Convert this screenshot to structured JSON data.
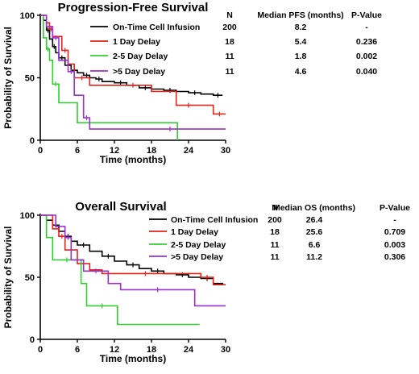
{
  "chart_data": [
    {
      "type": "line",
      "title": "Progression-Free Survival",
      "xlabel": "Time (months)",
      "ylabel": "Probability of Survival",
      "xlim": [
        0,
        30
      ],
      "ylim": [
        0,
        100
      ],
      "xticks": [
        "0",
        "6",
        "12",
        "18",
        "24",
        "30"
      ],
      "yticks": [
        "0",
        "50",
        "100"
      ],
      "legend": "top-right",
      "table_headers": [
        "N",
        "Median PFS (months)",
        "P-Value"
      ],
      "series": [
        {
          "name": "On-Time Cell Infusion",
          "color": "#000000",
          "N": "200",
          "median": "8.2",
          "p_value": "-",
          "x": [
            0,
            0.5,
            1,
            1.5,
            2,
            2.5,
            3,
            4,
            5,
            6,
            7,
            8,
            9,
            10,
            12,
            14,
            16,
            18,
            20,
            22,
            24,
            26,
            28,
            29.5
          ],
          "y": [
            100,
            96,
            88,
            81,
            75,
            70,
            66,
            60,
            56,
            54,
            52,
            50,
            49,
            47,
            46,
            44,
            42,
            41,
            40,
            39,
            38,
            37,
            36,
            36
          ]
        },
        {
          "name": "1 Day Delay",
          "color": "#e32219",
          "N": "18",
          "median": "5.4",
          "p_value": "0.236",
          "x": [
            0,
            1,
            1.5,
            2,
            3.5,
            4.5,
            5.5,
            8,
            12,
            18,
            22,
            26,
            28,
            30
          ],
          "y": [
            100,
            94,
            89,
            83,
            72,
            61,
            50,
            44,
            44,
            39,
            28,
            28,
            21,
            21
          ]
        },
        {
          "name": "2-5 Day Delay",
          "color": "#33cc33",
          "N": "11",
          "median": "1.8",
          "p_value": "0.002",
          "x": [
            0,
            0.5,
            1,
            1.5,
            2,
            3,
            6,
            10,
            22.2
          ],
          "y": [
            100,
            82,
            73,
            64,
            45,
            30,
            14,
            14,
            0
          ]
        },
        {
          "name": ">5 Day Delay",
          "color": "#9b30d0",
          "N": "11",
          "median": "4.6",
          "p_value": "0.040",
          "x": [
            0,
            1,
            2,
            3,
            4.5,
            5.5,
            7,
            8,
            12,
            30
          ],
          "y": [
            100,
            91,
            82,
            64,
            55,
            36,
            18,
            9,
            9,
            9
          ]
        }
      ]
    },
    {
      "type": "line",
      "title": "Overall Survival",
      "xlabel": "Time (months)",
      "ylabel": "Probability of Survival",
      "xlim": [
        0,
        30
      ],
      "ylim": [
        0,
        100
      ],
      "xticks": [
        "0",
        "6",
        "12",
        "18",
        "24",
        "30"
      ],
      "yticks": [
        "0",
        "50",
        "100"
      ],
      "legend": "top-right",
      "table_headers": [
        "N",
        "Median OS (months)",
        "P-Value"
      ],
      "series": [
        {
          "name": "On-Time Cell Infusion",
          "color": "#000000",
          "N": "200",
          "median": "26.4",
          "p_value": "-",
          "x": [
            0,
            1,
            2,
            3,
            4,
            5,
            6,
            8,
            10,
            12,
            14,
            16,
            18,
            20,
            22,
            24,
            26,
            28,
            29.5
          ],
          "y": [
            100,
            96,
            92,
            87,
            83,
            79,
            76,
            71,
            67,
            63,
            60,
            57,
            55,
            53,
            52,
            50,
            49,
            45,
            44
          ]
        },
        {
          "name": "1 Day Delay",
          "color": "#e32219",
          "N": "18",
          "median": "25.6",
          "p_value": "0.709",
          "x": [
            0,
            2,
            3,
            4,
            6,
            8,
            10,
            24,
            26,
            28,
            30
          ],
          "y": [
            100,
            89,
            83,
            72,
            61,
            56,
            53,
            53,
            50,
            44,
            44
          ]
        },
        {
          "name": "2-5 Day Delay",
          "color": "#33cc33",
          "N": "11",
          "median": "6.6",
          "p_value": "0.003",
          "x": [
            0,
            1,
            2,
            6.6,
            7.5,
            12.5,
            25.8
          ],
          "y": [
            100,
            82,
            64,
            45,
            27,
            12,
            12
          ]
        },
        {
          "name": ">5 Day Delay",
          "color": "#9b30d0",
          "N": "11",
          "median": "11.2",
          "p_value": "0.306",
          "x": [
            0,
            2.5,
            4,
            5,
            7,
            11,
            13,
            25,
            30
          ],
          "y": [
            100,
            91,
            82,
            64,
            55,
            45,
            40,
            27,
            27
          ]
        }
      ]
    }
  ]
}
